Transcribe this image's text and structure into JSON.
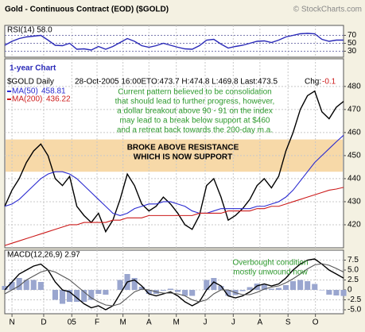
{
  "chart_data": [
    {
      "type": "line",
      "title": "RSI(14) 58.0",
      "series": [
        {
          "color": "#2a2ab8",
          "values": [
            45,
            55,
            62,
            66,
            68,
            70,
            58,
            45,
            44,
            50,
            35,
            36,
            33,
            42,
            35,
            42,
            52,
            62,
            55,
            44,
            40,
            44,
            50,
            45,
            40,
            36,
            35,
            44,
            58,
            60,
            48,
            38,
            42,
            45,
            50,
            55,
            56,
            52,
            58,
            66,
            70,
            74,
            75,
            74,
            60,
            55,
            58,
            58.0
          ]
        }
      ],
      "ylim": [
        15,
        95
      ],
      "yticks": [
        30,
        50,
        70
      ],
      "grid": true
    },
    {
      "type": "line",
      "title": "Gold - Continuous Contract (EOD) ($GOLD)",
      "source": "© StockCharts.com",
      "subtitle": "1-year Chart",
      "header": {
        "date": "28-Oct-2005 16:00ET",
        "ohlc": "O:473.7 H:474.8 L:469.8 Last:473.5",
        "change_label": "Chg:",
        "change": "-0.1"
      },
      "series": [
        {
          "name": "$GOLD Daily",
          "color": "#000000",
          "values": [
            428,
            435,
            440,
            447,
            452,
            455,
            450,
            440,
            437,
            441,
            428,
            424,
            421,
            425,
            417,
            422,
            431,
            442,
            437,
            429,
            426,
            428,
            432,
            429,
            425,
            420,
            418,
            424,
            437,
            440,
            432,
            422,
            424,
            427,
            431,
            437,
            440,
            436,
            441,
            452,
            460,
            470,
            476,
            478,
            469,
            466,
            471,
            473.5
          ]
        },
        {
          "name": "MA(50)",
          "color": "#2a2ad0",
          "values": [
            428,
            429,
            431,
            434,
            437,
            440,
            442,
            443,
            443,
            442,
            440,
            437,
            434,
            431,
            428,
            425,
            424,
            425,
            427,
            428,
            429,
            429,
            430,
            430,
            429,
            428,
            426,
            425,
            425,
            426,
            427,
            427,
            427,
            427,
            427,
            428,
            428,
            429,
            430,
            432,
            435,
            439,
            443,
            447,
            450,
            453,
            456,
            458.81
          ]
        },
        {
          "name": "MA(200)",
          "color": "#cc1a1a",
          "values": [
            411,
            412,
            413,
            414,
            415,
            416,
            417,
            418,
            419,
            420,
            420,
            421,
            421,
            421,
            421,
            422,
            422,
            423,
            423,
            423,
            424,
            424,
            424,
            424,
            424,
            424,
            424,
            425,
            425,
            425,
            425,
            426,
            426,
            426,
            426,
            427,
            427,
            428,
            428,
            429,
            430,
            431,
            432,
            433,
            434,
            435,
            435.5,
            436.22
          ]
        }
      ],
      "bands": [
        {
          "from": 443,
          "to": 457,
          "color": "#f7d9a8"
        }
      ],
      "annotations": [
        {
          "color": "#2e9a2e",
          "lines": [
            "Current pattern believed to be consolidation",
            "that should lead to further progress, however,",
            "a dollar breakout above 90 - 91 on the index",
            "may lead to a break below support at $460",
            "and a retreat back towards the 200-day m.a."
          ]
        },
        {
          "color": "#000000",
          "lines": [
            "BROKE ABOVE RESISTANCE",
            "WHICH IS NOW SUPPORT"
          ]
        }
      ],
      "ylim": [
        410,
        492
      ],
      "yticks": [
        420,
        430,
        440,
        450,
        460,
        470,
        480
      ],
      "grid": true
    },
    {
      "type": "line",
      "title": "MACD(12,26,9) 2.97",
      "x": [
        0,
        1,
        2,
        3,
        4,
        5,
        6,
        7,
        8,
        9,
        10,
        11,
        12,
        13,
        14,
        15,
        16,
        17,
        18,
        19,
        20,
        21,
        22,
        23,
        24,
        25,
        26,
        27,
        28,
        29,
        30,
        31,
        32,
        33,
        34,
        35,
        36,
        37,
        38,
        39,
        40,
        41,
        42,
        43,
        44,
        45,
        46,
        47
      ],
      "xlim": [
        0,
        47
      ],
      "xticks": [
        {
          "value": 1,
          "label": "N"
        },
        {
          "value": 5.4,
          "label": "D"
        },
        {
          "value": 9.3,
          "label": "05"
        },
        {
          "value": 12.8,
          "label": "F"
        },
        {
          "value": 16.4,
          "label": "M"
        },
        {
          "value": 20,
          "label": "A"
        },
        {
          "value": 23.8,
          "label": "M"
        },
        {
          "value": 27.8,
          "label": "J"
        },
        {
          "value": 31.7,
          "label": "J"
        },
        {
          "value": 35.4,
          "label": "A"
        },
        {
          "value": 39.3,
          "label": "S"
        },
        {
          "value": 43.1,
          "label": "O"
        }
      ],
      "series": [
        {
          "color": "#000000",
          "values": [
            0,
            2,
            4,
            5,
            6,
            6.5,
            5,
            2,
            0,
            -0.5,
            -2,
            -3.5,
            -4.5,
            -4,
            -5,
            -4,
            -1,
            2,
            2.5,
            1,
            -1,
            -1.5,
            -1,
            -0.5,
            -1.5,
            -3,
            -4,
            -3,
            0,
            2,
            1,
            -1.5,
            -2,
            -1.5,
            -0.5,
            1,
            1.5,
            1,
            1.5,
            3,
            5,
            6.5,
            7.5,
            7.8,
            6.5,
            5,
            4,
            2.97
          ]
        },
        {
          "color": "#555555",
          "values": [
            -1,
            0,
            1,
            2.5,
            3.5,
            4.5,
            5,
            4.5,
            3.5,
            2.5,
            1,
            -0.5,
            -2,
            -3,
            -3.8,
            -4,
            -3.5,
            -2,
            -0.5,
            0.2,
            0,
            -0.5,
            -0.8,
            -0.8,
            -1,
            -1.5,
            -2.5,
            -3,
            -2.5,
            -1,
            0,
            0,
            -0.7,
            -1.2,
            -1.2,
            -0.6,
            0.2,
            0.7,
            1,
            1.8,
            2.8,
            4,
            5.3,
            6.3,
            6.6,
            6.2,
            5.4,
            4.5
          ]
        }
      ],
      "histogram": {
        "color": "#9aa6cf",
        "values": [
          1,
          2,
          3,
          2.5,
          2.5,
          2,
          0,
          -2.5,
          -3.5,
          -3,
          -3,
          -3,
          -2.5,
          -1,
          -1.2,
          0,
          2.5,
          4,
          3,
          0.8,
          -1,
          -1,
          -0.2,
          0.3,
          -0.5,
          -1.5,
          -1.5,
          0,
          2.5,
          3,
          1,
          -1.5,
          -1.3,
          -0.3,
          0.7,
          1.6,
          1.3,
          0.3,
          0.5,
          1.2,
          2.2,
          2.5,
          2.2,
          1.5,
          -0.1,
          -1.2,
          -1.4,
          -1.53
        ]
      },
      "annotations": [
        {
          "color": "#2e9a2e",
          "lines": [
            "Overbought condition",
            "mostly unwound now"
          ]
        }
      ],
      "ylim": [
        -6,
        10
      ],
      "yticks": [
        {
          "value": -5,
          "label": "-5.0"
        },
        -2.5,
        0,
        2.5,
        {
          "value": 5,
          "label": "5.0"
        },
        7.5
      ],
      "grid": true
    }
  ]
}
